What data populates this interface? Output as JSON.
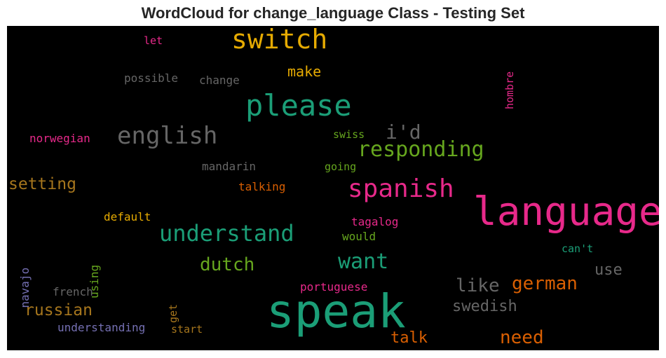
{
  "chart_data": {
    "type": "wordcloud",
    "title": "WordCloud for change_language Class - Testing Set",
    "background": "#000000",
    "words": [
      {
        "text": "speak",
        "size": 66,
        "color": "#1b9e77"
      },
      {
        "text": "language",
        "size": 56,
        "color": "#e7298a"
      },
      {
        "text": "please",
        "size": 42,
        "color": "#1b9e77"
      },
      {
        "text": "switch",
        "size": 38,
        "color": "#e6ab02"
      },
      {
        "text": "spanish",
        "size": 36,
        "color": "#e7298a"
      },
      {
        "text": "english",
        "size": 34,
        "color": "#666666"
      },
      {
        "text": "understand",
        "size": 32,
        "color": "#1b9e77"
      },
      {
        "text": "responding",
        "size": 30,
        "color": "#66a61e"
      },
      {
        "text": "want",
        "size": 30,
        "color": "#1b9e77"
      },
      {
        "text": "i'd",
        "size": 28,
        "color": "#666666"
      },
      {
        "text": "dutch",
        "size": 26,
        "color": "#66a61e"
      },
      {
        "text": "german",
        "size": 26,
        "color": "#d95f02"
      },
      {
        "text": "need",
        "size": 26,
        "color": "#d95f02"
      },
      {
        "text": "like",
        "size": 26,
        "color": "#666666"
      },
      {
        "text": "setting",
        "size": 23,
        "color": "#a6761d"
      },
      {
        "text": "russian",
        "size": 23,
        "color": "#a6761d"
      },
      {
        "text": "swedish",
        "size": 22,
        "color": "#666666"
      },
      {
        "text": "talk",
        "size": 22,
        "color": "#d95f02"
      },
      {
        "text": "use",
        "size": 22,
        "color": "#666666"
      },
      {
        "text": "make",
        "size": 20,
        "color": "#e6ab02"
      },
      {
        "text": "hombre",
        "size": 15,
        "color": "#e7298a",
        "orientation": "vertical"
      },
      {
        "text": "let",
        "size": 15,
        "color": "#e7298a"
      },
      {
        "text": "possible",
        "size": 16,
        "color": "#666666"
      },
      {
        "text": "change",
        "size": 16,
        "color": "#666666"
      },
      {
        "text": "norwegian",
        "size": 16,
        "color": "#e7298a"
      },
      {
        "text": "swiss",
        "size": 15,
        "color": "#66a61e"
      },
      {
        "text": "mandarin",
        "size": 16,
        "color": "#666666"
      },
      {
        "text": "going",
        "size": 15,
        "color": "#66a61e"
      },
      {
        "text": "talking",
        "size": 16,
        "color": "#d95f02"
      },
      {
        "text": "default",
        "size": 16,
        "color": "#e6ab02"
      },
      {
        "text": "tagalog",
        "size": 16,
        "color": "#e7298a"
      },
      {
        "text": "would",
        "size": 16,
        "color": "#66a61e"
      },
      {
        "text": "navajo",
        "size": 16,
        "color": "#7570b3",
        "orientation": "vertical"
      },
      {
        "text": "using",
        "size": 16,
        "color": "#66a61e",
        "orientation": "vertical"
      },
      {
        "text": "can't",
        "size": 15,
        "color": "#1b9e77"
      },
      {
        "text": "french",
        "size": 16,
        "color": "#666666"
      },
      {
        "text": "get",
        "size": 15,
        "color": "#a6761d",
        "orientation": "vertical"
      },
      {
        "text": "portuguese",
        "size": 16,
        "color": "#e7298a"
      },
      {
        "text": "understanding",
        "size": 16,
        "color": "#7570b3"
      },
      {
        "text": "start",
        "size": 15,
        "color": "#a6761d"
      }
    ]
  }
}
